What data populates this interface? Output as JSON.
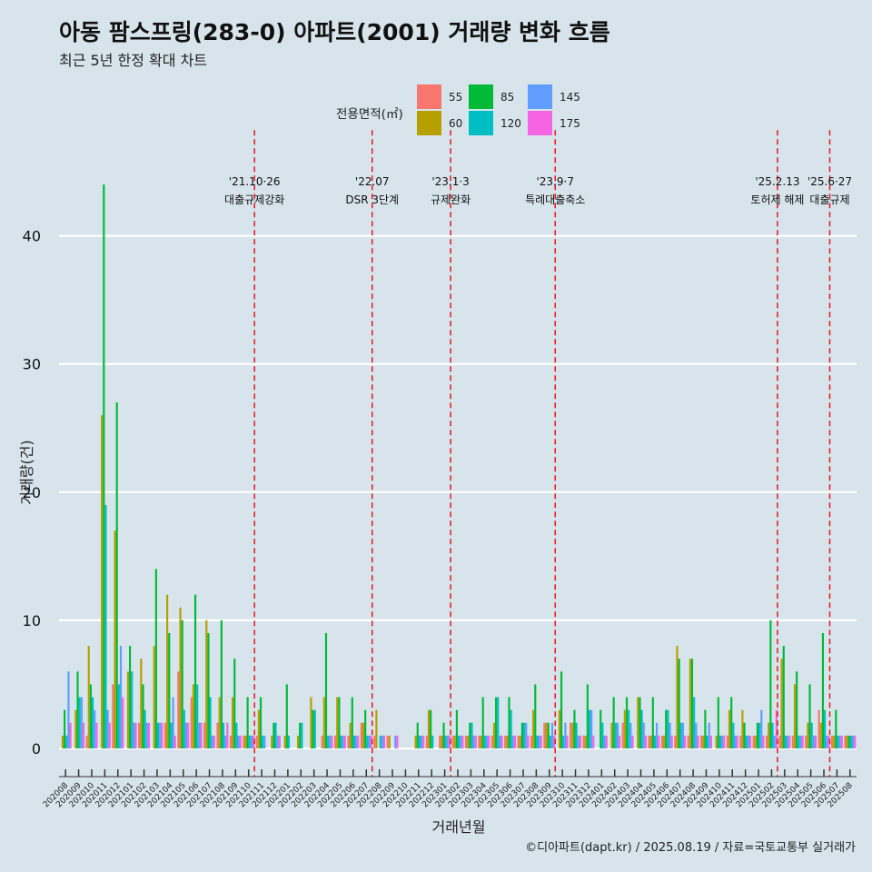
{
  "title": "아동 팜스프링(283-0) 아파트(2001) 거래량 변화 흐름",
  "subtitle": "최근 5년 한정 확대 차트",
  "caption": "©디아파트(dapt.kr) / 2025.08.19 / 자료=국토교통부 실거래가",
  "chart_data": {
    "type": "bar",
    "xlabel": "거래년월",
    "ylabel": "거래량(건)",
    "ylim": [
      -2.2,
      46
    ],
    "yticks": [
      0,
      10,
      20,
      30,
      40
    ],
    "legend": {
      "title": "전용면적(㎡)",
      "position": "top",
      "entries": [
        {
          "name": "55",
          "color": "#f8766d"
        },
        {
          "name": "60",
          "color": "#b79f00"
        },
        {
          "name": "85",
          "color": "#00ba38"
        },
        {
          "name": "120",
          "color": "#00bfc4"
        },
        {
          "name": "145",
          "color": "#619cff"
        },
        {
          "name": "175",
          "color": "#f564e3"
        }
      ]
    },
    "x": [
      "202008",
      "202009",
      "202010",
      "202011",
      "202012",
      "202101",
      "202102",
      "202103",
      "202104",
      "202105",
      "202106",
      "202107",
      "202108",
      "202109",
      "202110",
      "202111",
      "202112",
      "202201",
      "202202",
      "202203",
      "202204",
      "202205",
      "202206",
      "202207",
      "202208",
      "202209",
      "202210",
      "202211",
      "202212",
      "202301",
      "202302",
      "202303",
      "202304",
      "202305",
      "202306",
      "202307",
      "202308",
      "202309",
      "202310",
      "202311",
      "202312",
      "202401",
      "202402",
      "202403",
      "202404",
      "202405",
      "202406",
      "202407",
      "202408",
      "202409",
      "202410",
      "202411",
      "202412",
      "202501",
      "202502",
      "202503",
      "202504",
      "202505",
      "202506",
      "202507",
      "202508"
    ],
    "xtick_labels": [
      "202008",
      "202009",
      "202010",
      "202011",
      "202012",
      "202101",
      "202102",
      "202103",
      "202104",
      "202105",
      "202106",
      "202107",
      "202108",
      "202109",
      "202110",
      "202111",
      "202112",
      "202201",
      "202202",
      "202203",
      "202204",
      "202205",
      "202206",
      "202207",
      "202208",
      "202209",
      "202210",
      "202211",
      "202212",
      "202301",
      "202302",
      "202303",
      "202304",
      "202305",
      "202306",
      "202307",
      "202308",
      "202309",
      "202310",
      "202311",
      "202312",
      "202401",
      "202402",
      "202403",
      "202404",
      "202405",
      "202406",
      "202407",
      "202408",
      "202409",
      "202410",
      "202411",
      "202412",
      "202501",
      "202502",
      "202503",
      "202504",
      "202505",
      "202506",
      "202507",
      "202508"
    ],
    "series": [
      {
        "name": "55",
        "values": [
          0,
          0,
          1,
          0,
          5,
          0,
          2,
          0,
          2,
          6,
          4,
          2,
          2,
          1,
          1,
          1,
          0,
          0,
          0,
          0,
          1,
          1,
          1,
          2,
          1,
          1,
          0,
          0,
          1,
          1,
          1,
          1,
          1,
          1,
          1,
          1,
          1,
          2,
          0,
          2,
          1,
          0,
          0,
          2,
          0,
          1,
          1,
          1,
          1,
          1,
          0,
          1,
          1,
          1,
          1,
          1,
          1,
          1,
          3,
          1,
          1
        ]
      },
      {
        "name": "60",
        "values": [
          1,
          3,
          8,
          26,
          17,
          6,
          7,
          8,
          12,
          11,
          5,
          10,
          4,
          4,
          1,
          3,
          1,
          1,
          1,
          4,
          4,
          4,
          2,
          2,
          3,
          1,
          0,
          1,
          3,
          1,
          1,
          1,
          1,
          2,
          1,
          1,
          3,
          2,
          3,
          2,
          1,
          0,
          2,
          3,
          4,
          1,
          1,
          8,
          7,
          1,
          1,
          3,
          3,
          1,
          2,
          7,
          5,
          2,
          2,
          1,
          1
        ]
      },
      {
        "name": "85",
        "values": [
          3,
          6,
          5,
          44,
          27,
          8,
          5,
          14,
          9,
          10,
          12,
          9,
          10,
          7,
          4,
          4,
          2,
          5,
          2,
          3,
          9,
          4,
          4,
          3,
          0,
          0,
          0,
          2,
          3,
          2,
          3,
          2,
          4,
          4,
          4,
          2,
          5,
          2,
          6,
          3,
          5,
          3,
          4,
          4,
          4,
          4,
          3,
          7,
          7,
          3,
          4,
          4,
          2,
          2,
          10,
          8,
          6,
          5,
          9,
          3,
          1
        ]
      },
      {
        "name": "120",
        "values": [
          1,
          4,
          4,
          19,
          5,
          6,
          3,
          2,
          2,
          3,
          5,
          4,
          2,
          2,
          1,
          1,
          2,
          1,
          2,
          3,
          1,
          1,
          1,
          1,
          1,
          0,
          0,
          1,
          1,
          1,
          1,
          2,
          1,
          4,
          3,
          2,
          1,
          1,
          1,
          2,
          3,
          2,
          2,
          3,
          3,
          1,
          3,
          2,
          4,
          1,
          1,
          2,
          1,
          2,
          2,
          1,
          1,
          2,
          3,
          1,
          1
        ]
      },
      {
        "name": "145",
        "values": [
          6,
          4,
          3,
          3,
          8,
          2,
          2,
          2,
          4,
          2,
          2,
          1,
          1,
          1,
          1,
          1,
          1,
          0,
          0,
          0,
          1,
          1,
          1,
          1,
          1,
          1,
          0,
          1,
          0,
          1,
          1,
          1,
          1,
          1,
          1,
          2,
          1,
          2,
          2,
          1,
          3,
          1,
          2,
          2,
          2,
          2,
          2,
          2,
          2,
          2,
          1,
          1,
          1,
          3,
          1,
          1,
          1,
          1,
          1,
          1,
          1
        ]
      },
      {
        "name": "175",
        "values": [
          2,
          2,
          2,
          2,
          4,
          2,
          2,
          2,
          1,
          2,
          2,
          1,
          2,
          1,
          1,
          0,
          1,
          0,
          0,
          0,
          1,
          1,
          1,
          1,
          1,
          1,
          0,
          1,
          0,
          1,
          1,
          1,
          1,
          1,
          1,
          1,
          1,
          1,
          1,
          1,
          1,
          1,
          1,
          1,
          1,
          1,
          1,
          1,
          1,
          1,
          1,
          1,
          1,
          1,
          3,
          1,
          1,
          1,
          1,
          1,
          1
        ]
      }
    ],
    "annotations": [
      {
        "after": "202110",
        "line1": "'21.10·26",
        "line2": "대출규제강화"
      },
      {
        "after": "202207",
        "line1": "'22.07",
        "line2": "DSR 3단계"
      },
      {
        "after": "202301",
        "line1": "'23.1·3",
        "line2": "규제완화"
      },
      {
        "after": "202309",
        "line1": "'23.9·7",
        "line2": "특례대출축소"
      },
      {
        "after": "202502",
        "line1": "'25.2.13",
        "line2": "토허제 해제"
      },
      {
        "after": "202506",
        "line1": "'25.6·27",
        "line2": "대출규제"
      }
    ],
    "grid": true
  }
}
